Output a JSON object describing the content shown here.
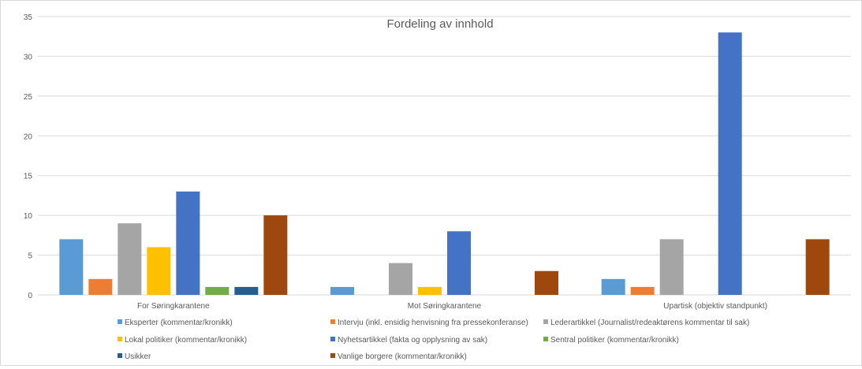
{
  "chart_data": {
    "type": "bar",
    "title": "Fordeling av innhold",
    "xlabel": "",
    "ylabel": "",
    "ylim": [
      0,
      35
    ],
    "yticks": [
      0,
      5,
      10,
      15,
      20,
      25,
      30,
      35
    ],
    "grid": true,
    "legend_position": "bottom",
    "categories": [
      "For Søringkarantene",
      "Mot Søringkarantene",
      "Upartisk  (objektiv standpunkt)"
    ],
    "series": [
      {
        "name": "Eksperter (kommentar/kronikk)",
        "color": "#5B9BD5",
        "values": [
          7,
          1,
          2
        ]
      },
      {
        "name": "Intervju (inkl. ensidig henvisning fra pressekonferanse)",
        "color": "#ED7D31",
        "values": [
          2,
          0,
          1
        ]
      },
      {
        "name": "Lederartikkel (Journalist/redeaktørens kommentar til sak)",
        "color": "#A5A5A5",
        "values": [
          9,
          4,
          7
        ]
      },
      {
        "name": "Lokal politiker (kommentar/kronikk)",
        "color": "#FFC000",
        "values": [
          6,
          1,
          0
        ]
      },
      {
        "name": "Nyhetsartikkel (fakta og opplysning av sak)",
        "color": "#4472C4",
        "values": [
          13,
          8,
          33
        ]
      },
      {
        "name": "Sentral politiker (kommentar/kronikk)",
        "color": "#70AD47",
        "values": [
          1,
          0,
          0
        ]
      },
      {
        "name": "Usikker",
        "color": "#255E91",
        "values": [
          1,
          0,
          0
        ]
      },
      {
        "name": "Vanlige borgere (kommentar/kronikk)",
        "color": "#9E480E",
        "values": [
          10,
          3,
          7
        ]
      }
    ]
  }
}
